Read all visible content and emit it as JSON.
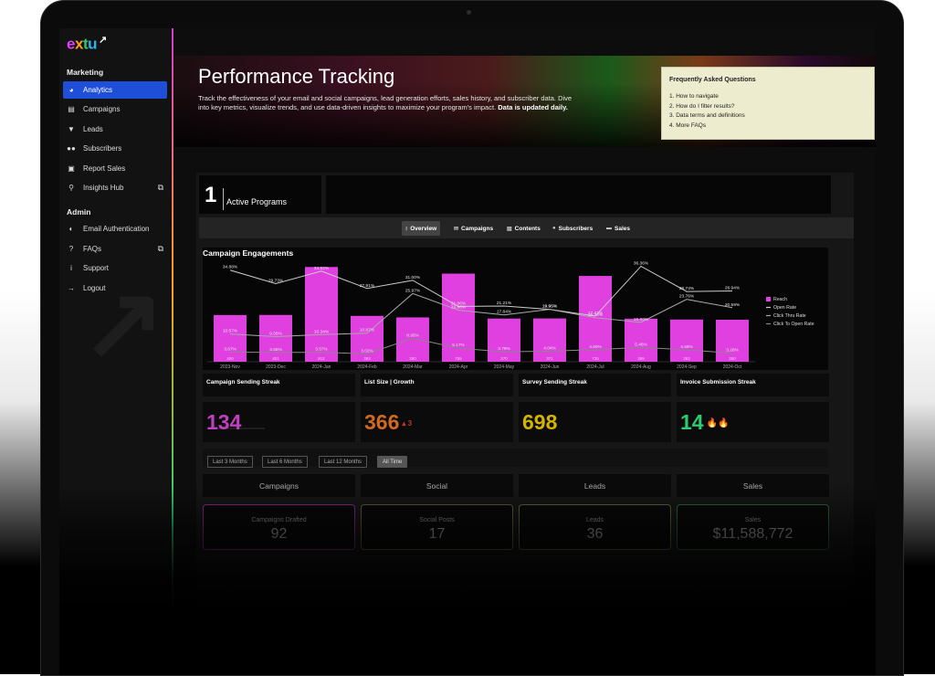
{
  "brand": {
    "l1": "e",
    "l2": "x",
    "l3": "t",
    "l4": "u"
  },
  "sidebar": {
    "marketing_label": "Marketing",
    "items": [
      {
        "label": "Analytics",
        "icon": "pie-chart-icon"
      },
      {
        "label": "Campaigns",
        "icon": "campaign-icon"
      },
      {
        "label": "Leads",
        "icon": "funnel-icon"
      },
      {
        "label": "Subscribers",
        "icon": "users-icon"
      },
      {
        "label": "Report Sales",
        "icon": "money-icon"
      },
      {
        "label": "Insights Hub",
        "icon": "lightbulb-icon"
      }
    ],
    "admin_label": "Admin",
    "admin_items": [
      {
        "label": "Email Authentication",
        "icon": "shield-icon"
      },
      {
        "label": "FAQs",
        "icon": "question-icon"
      },
      {
        "label": "Support",
        "icon": "info-icon"
      },
      {
        "label": "Logout",
        "icon": "logout-icon"
      }
    ]
  },
  "hero": {
    "title": "Performance Tracking",
    "description": "Track the effectiveness of your email and social campaigns, lead generation efforts, sales history, and subscriber data. Dive into key metrics, visualize trends, and use data-driven insights to maximize your program's impact.",
    "description_bold": "Data is updated daily."
  },
  "faq": {
    "title": "Frequently Asked Questions",
    "items": [
      "1.  How to navigate",
      "2.  How do I filter results?",
      "3.  Data terms and definitions",
      "4.  More FAQs"
    ]
  },
  "active_programs": {
    "count": "1",
    "label": "Active Programs"
  },
  "tabs": [
    "Overview",
    "Campaigns",
    "Contents",
    "Subscribers",
    "Sales"
  ],
  "chart_data": {
    "type": "bar",
    "title": "Campaign Engagements",
    "categories": [
      "2023-Nov",
      "2023-Dec",
      "2024-Jan",
      "2024-Feb",
      "2024-Mar",
      "2024-Apr",
      "2024-May",
      "2024-Jun",
      "2024-Jul",
      "2024-Aug",
      "2024-Sep",
      "2024-Oct"
    ],
    "series": [
      {
        "name": "Reach",
        "type": "bar",
        "color": "#e040e0",
        "values": [
          400,
          401,
          812,
          393,
          380,
          755,
          370,
          371,
          735,
          369,
          362,
          360
        ]
      },
      {
        "name": "Open Rate",
        "type": "line",
        "color": "#cccccc",
        "values": [
          34.88,
          29.73,
          34.52,
          27.91,
          31.0,
          21.06,
          21.21,
          19.95,
          17.42,
          36.36,
          26.74,
          26.94
        ]
      },
      {
        "name": "Click Thru Rate",
        "type": "line",
        "color": "#aaaaaa",
        "values": [
          10.57,
          9.55,
          10.34,
          10.87,
          25.97,
          19.66,
          17.84,
          19.95,
          16.76,
          15.0,
          23.76,
          20.59
        ]
      },
      {
        "name": "Click To Open Rate",
        "type": "line",
        "color": "#888888",
        "values": [
          3.67,
          3.55,
          3.57,
          3.02,
          8.95,
          5.17,
          3.79,
          4.04,
          4.6,
          5.46,
          4.55,
          3.28
        ]
      }
    ],
    "legend": "right",
    "ylim": [
      0,
      900
    ]
  },
  "streaks": [
    {
      "label": "Campaign Sending Streak",
      "value": "134",
      "suffix": "",
      "color": "#c040c0"
    },
    {
      "label": "List Size | Growth",
      "value": "366",
      "suffix": "▴ 3",
      "color": "#d2691e"
    },
    {
      "label": "Survey Sending Streak",
      "value": "698",
      "suffix": "",
      "color": "#d4b400"
    },
    {
      "label": "Invoice Submission Streak",
      "value": "14",
      "suffix": "🔥🔥",
      "color": "#2ecc71"
    }
  ],
  "ranges": [
    "Last 3 Months",
    "Last 6 Months",
    "Last 12 Months",
    "All Time"
  ],
  "categories": [
    "Campaigns",
    "Social",
    "Leads",
    "Sales"
  ],
  "kpis": [
    {
      "label": "Campaigns Drafted",
      "value": "92",
      "border": "#8a2a8a"
    },
    {
      "label": "Social Posts",
      "value": "17",
      "border": "#6a5a3a"
    },
    {
      "label": "Leads",
      "value": "36",
      "border": "#5a6a2a"
    },
    {
      "label": "Sales",
      "value": "$11,588,772",
      "border": "#2a6a3a"
    }
  ]
}
